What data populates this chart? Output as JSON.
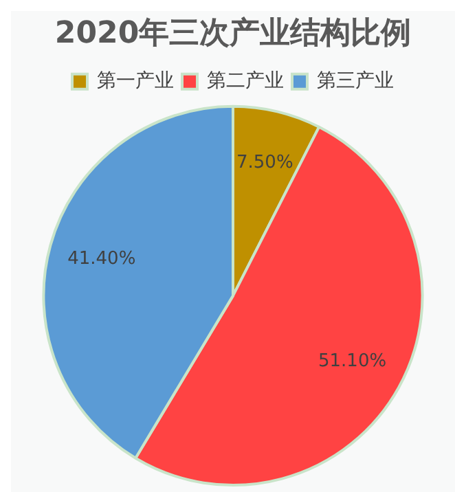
{
  "chart_data": {
    "type": "pie",
    "title": "2020年三次产业结构比例",
    "categories": [
      "第一产业",
      "第二产业",
      "第三产业"
    ],
    "values": [
      7.5,
      51.1,
      41.4
    ],
    "value_labels": [
      "7.50%",
      "51.10%",
      "41.40%"
    ],
    "colors": [
      "#bf9000",
      "#ff4343",
      "#5b9bd5"
    ],
    "legend": "top"
  }
}
